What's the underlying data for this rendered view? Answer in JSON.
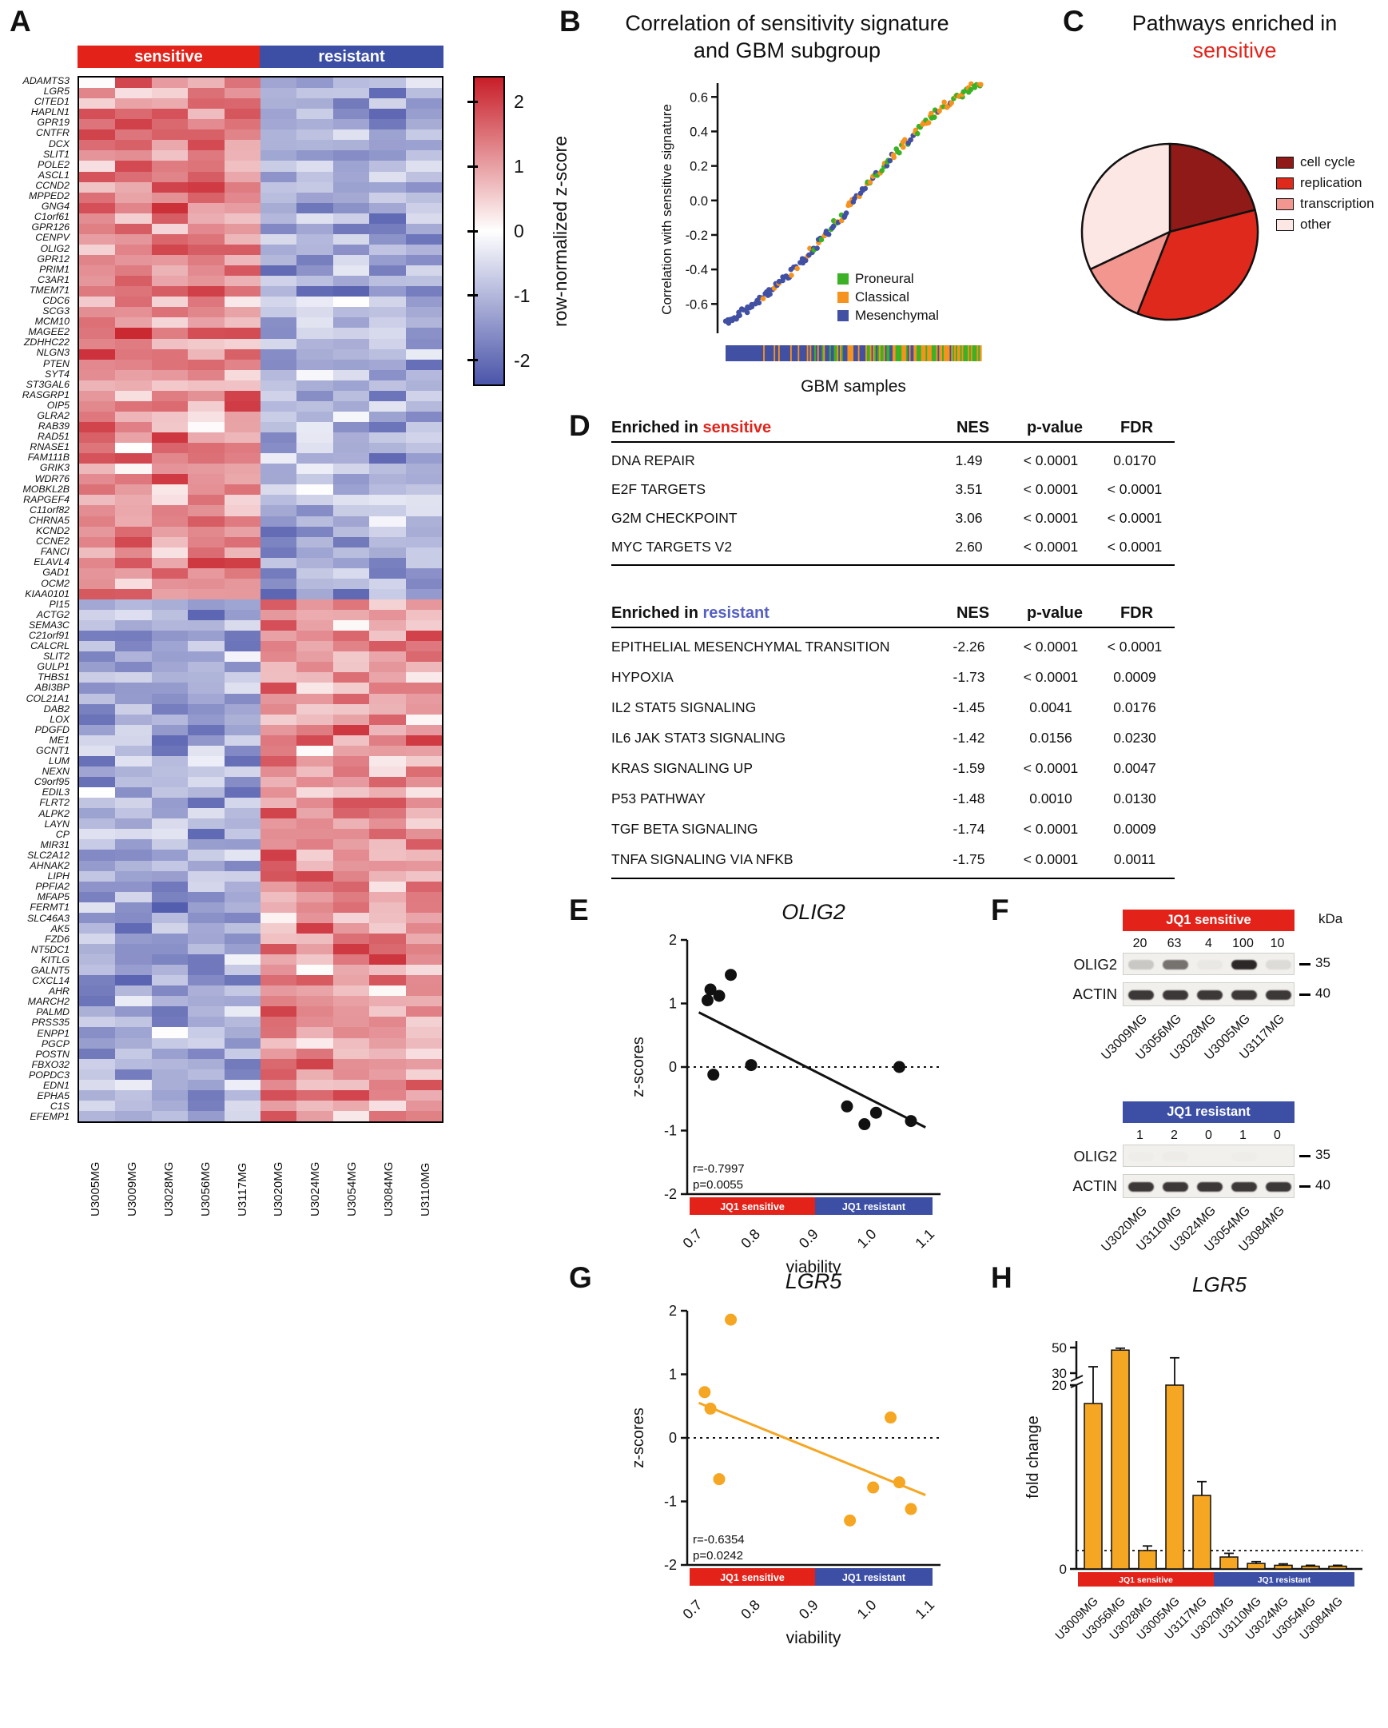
{
  "colors": {
    "sensitive": "#e3231a",
    "resistant": "#3c4fa5",
    "bar_orange": "#f5a623"
  },
  "panelA": {
    "label": "A",
    "group_labels": {
      "sensitive": "sensitive",
      "resistant": "resistant"
    },
    "genes": [
      "ADAMTS3",
      "LGR5",
      "CITED1",
      "HAPLN1",
      "GPR19",
      "CNTFR",
      "DCX",
      "SLIT1",
      "POLE2",
      "ASCL1",
      "CCND2",
      "MPPED2",
      "GNG4",
      "C1orf61",
      "GPR126",
      "CENPV",
      "OLIG2",
      "GPR12",
      "PRIM1",
      "C3AR1",
      "TMEM71",
      "CDC6",
      "SCG3",
      "MCM10",
      "MAGEE2",
      "ZDHHC22",
      "NLGN3",
      "PTEN",
      "SYT4",
      "ST3GAL6",
      "RASGRP1",
      "OIP5",
      "GLRA2",
      "RAB39",
      "RAD51",
      "RNASE1",
      "FAM111B",
      "GRIK3",
      "WDR76",
      "MOBKL2B",
      "RAPGEF4",
      "C11orf82",
      "CHRNA5",
      "KCND2",
      "CCNE2",
      "FANCI",
      "ELAVL4",
      "GAD1",
      "OCM2",
      "KIAA0101",
      "PI15",
      "ACTG2",
      "SEMA3C",
      "C21orf91",
      "CALCRL",
      "SLIT2",
      "GULP1",
      "THBS1",
      "ABI3BP",
      "COL21A1",
      "DAB2",
      "LOX",
      "PDGFD",
      "ME1",
      "GCNT1",
      "LUM",
      "NEXN",
      "C9orf95",
      "EDIL3",
      "FLRT2",
      "ALPK2",
      "LAYN",
      "CP",
      "MIR31",
      "SLC2A12",
      "AHNAK2",
      "LIPH",
      "PPFIA2",
      "MFAP5",
      "FERMT1",
      "SLC46A3",
      "AK5",
      "FZD6",
      "NT5DC1",
      "KITLG",
      "GALNT5",
      "CXCL14",
      "AHR",
      "MARCH2",
      "PALMD",
      "PRSS35",
      "ENPP1",
      "PGCP",
      "POSTN",
      "FBXO32",
      "POPDC3",
      "EDN1",
      "EPHA5",
      "C1S",
      "EFEMP1"
    ],
    "samples": [
      "U3005MG",
      "U3009MG",
      "U3028MG",
      "U3056MG",
      "U3117MG",
      "U3020MG",
      "U3024MG",
      "U3054MG",
      "U3084MG",
      "U3110MG"
    ],
    "colorbar_label": "row-normalized z-score",
    "colorbar_ticks": [
      "2",
      "1",
      "0",
      "-1",
      "-2"
    ],
    "heat_pos": [
      200,
      30,
      40
    ],
    "heat_neg": [
      75,
      85,
      170
    ],
    "heatmap_seed": 7
  },
  "panelB": {
    "label": "B",
    "title_line1": "Correlation of sensitivity signature",
    "title_line2": "and GBM subgroup",
    "ylabel": "Correlation with sensitive signature",
    "xlabel": "GBM samples",
    "yticks": [
      "0.6",
      "0.4",
      "0.2",
      "0.0",
      "-0.2",
      "-0.4",
      "-0.6"
    ],
    "legend": [
      {
        "name": "Proneural",
        "color": "#3bb226"
      },
      {
        "name": "Classical",
        "color": "#f6921e"
      },
      {
        "name": "Mesenchymal",
        "color": "#4150a2"
      }
    ],
    "n_points": 170,
    "seed": 11
  },
  "panelC": {
    "label": "C",
    "title_line1": "Pathways enriched in",
    "title_line2": "sensitive",
    "title2_color": "#e3231a",
    "slices": [
      {
        "name": "cell cycle",
        "color": "#8f1a17",
        "percent": 21
      },
      {
        "name": "replication",
        "color": "#e0291d",
        "percent": 35
      },
      {
        "name": "transcription",
        "color": "#f2968f",
        "percent": 12
      },
      {
        "name": "other",
        "color": "#fce7e4",
        "percent": 32
      }
    ]
  },
  "panelD": {
    "label": "D",
    "sensitive": {
      "title_prefix": "Enriched in ",
      "title_group": "sensitive",
      "group_color": "#e3231a",
      "columns": [
        "NES",
        "p-value",
        "FDR"
      ],
      "rows": [
        [
          "DNA REPAIR",
          "1.49",
          "< 0.0001",
          "0.0170"
        ],
        [
          "E2F TARGETS",
          "3.51",
          "< 0.0001",
          "< 0.0001"
        ],
        [
          "G2M CHECKPOINT",
          "3.06",
          "< 0.0001",
          "< 0.0001"
        ],
        [
          "MYC TARGETS V2",
          "2.60",
          "< 0.0001",
          "< 0.0001"
        ]
      ]
    },
    "resistant": {
      "title_prefix": "Enriched in ",
      "title_group": "resistant",
      "group_color": "#5560c0",
      "columns": [
        "NES",
        "p-value",
        "FDR"
      ],
      "rows": [
        [
          "EPITHELIAL MESENCHYMAL TRANSITION",
          "-2.26",
          "< 0.0001",
          "< 0.0001"
        ],
        [
          "HYPOXIA",
          "-1.73",
          "< 0.0001",
          "0.0009"
        ],
        [
          "IL2 STAT5 SIGNALING",
          "-1.45",
          "0.0041",
          "0.0176"
        ],
        [
          "IL6 JAK STAT3 SIGNALING",
          "-1.42",
          "0.0156",
          "0.0230"
        ],
        [
          "KRAS SIGNALING UP",
          "-1.59",
          "< 0.0001",
          "0.0047"
        ],
        [
          "P53 PATHWAY",
          "-1.48",
          "0.0010",
          "0.0130"
        ],
        [
          "TGF BETA SIGNALING",
          "-1.74",
          "< 0.0001",
          "0.0009"
        ],
        [
          "TNFA SIGNALING VIA NFKB",
          "-1.75",
          "< 0.0001",
          "0.0011"
        ]
      ]
    }
  },
  "panelE": {
    "label": "E",
    "title": "OLIG2",
    "ylabel": "z-scores",
    "xlabel": "viability",
    "yticks": [
      "2",
      "1",
      "0",
      "-1",
      "-2"
    ],
    "xticks": [
      "0.7",
      "0.8",
      "0.9",
      "1.0",
      "1.1"
    ],
    "strip_left": "JQ1 sensitive",
    "strip_right": "JQ1 resistant",
    "r": "r=-0.7997",
    "p": "p=0.0055",
    "point_color": "#111111",
    "line_color": "#111111"
  },
  "panelF": {
    "label": "F",
    "kda": "kDa",
    "groups": [
      {
        "header": "JQ1 sensitive",
        "header_color": "#e3231a",
        "quant": [
          "20",
          "63",
          "4",
          "100",
          "10"
        ],
        "samples": [
          "U3009MG",
          "U3056MG",
          "U3028MG",
          "U3005MG",
          "U3117MG"
        ],
        "rows": [
          "OLIG2",
          "ACTIN"
        ],
        "markers": [
          "35",
          "40"
        ]
      },
      {
        "header": "JQ1 resistant",
        "header_color": "#3c4fa5",
        "quant": [
          "1",
          "2",
          "0",
          "1",
          "0"
        ],
        "samples": [
          "U3020MG",
          "U3110MG",
          "U3024MG",
          "U3054MG",
          "U3084MG"
        ],
        "rows": [
          "OLIG2",
          "ACTIN"
        ],
        "markers": [
          "35",
          "40"
        ]
      }
    ]
  },
  "panelG": {
    "label": "G",
    "title": "LGR5",
    "ylabel": "z-scores",
    "xlabel": "viability",
    "yticks": [
      "2",
      "1",
      "0",
      "-1",
      "-2"
    ],
    "xticks": [
      "0.7",
      "0.8",
      "0.9",
      "1.0",
      "1.1"
    ],
    "strip_left": "JQ1 sensitive",
    "strip_right": "JQ1 resistant",
    "r": "r=-0.6354",
    "p": "p=0.0242",
    "point_color": "#f5a623",
    "line_color": "#f5a623"
  },
  "panelH": {
    "label": "H",
    "title": "LGR5",
    "ylabel": "fold change",
    "strip_left": "JQ1 sensitive",
    "strip_right": "JQ1 resistant"
  },
  "chart_data": [
    {
      "id": "A",
      "type": "heatmap",
      "value_scale": "row-normalized z-score",
      "value_range": [
        -2,
        2
      ],
      "rows": "100 genes listed in panelA.genes",
      "cols": [
        "U3005MG",
        "U3009MG",
        "U3028MG",
        "U3056MG",
        "U3117MG",
        "U3020MG",
        "U3024MG",
        "U3054MG",
        "U3084MG",
        "U3110MG"
      ],
      "pattern": "genes ADAMTS3 through KIAA0101 are high (red) in the 5 sensitive lines and low (blue) in the 5 resistant lines; genes PI15 through EFEMP1 show the reverse pattern; exact cell values not legible, texture generated from heatmap_seed"
    },
    {
      "id": "B",
      "type": "scatter",
      "ylabel": "Correlation with sensitive signature",
      "xlabel": "GBM samples",
      "ylim": [
        -0.8,
        0.8
      ],
      "n_points": 170,
      "trend": "monotonic increase from about -0.70 to +0.68 across ranked GBM samples",
      "groups": [
        "Proneural",
        "Classical",
        "Mesenchymal"
      ],
      "group_distribution": "low correlations mostly Mesenchymal (blue), middle mixed Classical (orange), high correlations mostly Proneural (green) and Classical"
    },
    {
      "id": "C",
      "type": "pie",
      "categories": [
        "cell cycle",
        "replication",
        "transcription",
        "other"
      ],
      "values": [
        21,
        35,
        12,
        32
      ]
    },
    {
      "id": "E",
      "type": "scatter",
      "title": "OLIG2",
      "xlabel": "viability",
      "ylabel": "z-scores",
      "xlim": [
        0.7,
        1.1
      ],
      "ylim": [
        -2,
        2
      ],
      "points": [
        [
          0.715,
          1.05
        ],
        [
          0.72,
          1.22
        ],
        [
          0.735,
          1.12
        ],
        [
          0.755,
          1.45
        ],
        [
          0.725,
          -0.12
        ],
        [
          0.79,
          0.03
        ],
        [
          0.955,
          -0.62
        ],
        [
          0.985,
          -0.9
        ],
        [
          1.005,
          -0.72
        ],
        [
          1.045,
          0.0
        ],
        [
          1.065,
          -0.85
        ]
      ],
      "line": [
        [
          0.7,
          0.86
        ],
        [
          1.09,
          -0.95
        ]
      ],
      "r": -0.7997,
      "p": 0.0055
    },
    {
      "id": "G",
      "type": "scatter",
      "title": "LGR5",
      "xlabel": "viability",
      "ylabel": "z-scores",
      "xlim": [
        0.7,
        1.1
      ],
      "ylim": [
        -2,
        2
      ],
      "points": [
        [
          0.71,
          0.72
        ],
        [
          0.72,
          0.46
        ],
        [
          0.755,
          1.86
        ],
        [
          0.735,
          -0.65
        ],
        [
          0.96,
          -1.3
        ],
        [
          1.0,
          -0.78
        ],
        [
          1.03,
          0.32
        ],
        [
          1.045,
          -0.7
        ],
        [
          1.065,
          -1.12
        ]
      ],
      "line": [
        [
          0.7,
          0.55
        ],
        [
          1.09,
          -0.9
        ]
      ],
      "r": -0.6354,
      "p": 0.0242
    },
    {
      "id": "H",
      "type": "bar",
      "title": "LGR5",
      "ylabel": "fold change",
      "categories": [
        "U3009MG",
        "U3056MG",
        "U3028MG",
        "U3005MG",
        "U3117MG",
        "U3020MG",
        "U3110MG",
        "U3024MG",
        "U3054MG",
        "U3084MG"
      ],
      "values": [
        18,
        48,
        2,
        20,
        8,
        1.3,
        0.6,
        0.4,
        0.3,
        0.3
      ],
      "errors": [
        17,
        1.5,
        0.5,
        22,
        1.5,
        0.4,
        0.2,
        0.15,
        0.1,
        0.1
      ],
      "yticks": [
        0,
        20,
        30,
        50
      ],
      "axis_break": [
        20,
        30
      ],
      "baseline_dotted": 2
    },
    {
      "id": "F",
      "type": "table",
      "description": "western blot quantification",
      "bands": [
        "OLIG2",
        "ACTIN"
      ],
      "markers_kda": [
        35,
        40
      ],
      "groups": [
        {
          "name": "JQ1 sensitive",
          "samples": [
            "U3009MG",
            "U3056MG",
            "U3028MG",
            "U3005MG",
            "U3117MG"
          ],
          "olig2_quant": [
            20,
            63,
            4,
            100,
            10
          ]
        },
        {
          "name": "JQ1 resistant",
          "samples": [
            "U3020MG",
            "U3110MG",
            "U3024MG",
            "U3054MG",
            "U3084MG"
          ],
          "olig2_quant": [
            1,
            2,
            0,
            1,
            0
          ]
        }
      ]
    }
  ]
}
